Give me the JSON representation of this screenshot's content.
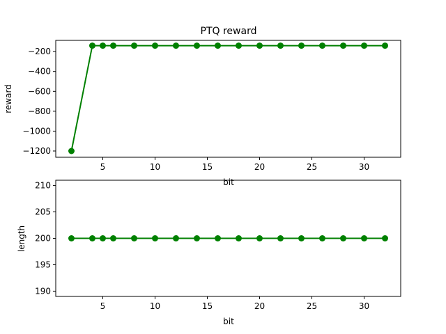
{
  "chart_data": [
    {
      "type": "line",
      "title": "PTQ reward",
      "xlabel": "bit",
      "ylabel": "reward",
      "x": [
        2,
        4,
        5,
        6,
        8,
        10,
        12,
        14,
        16,
        18,
        20,
        22,
        24,
        26,
        28,
        30,
        32
      ],
      "series": [
        {
          "values": [
            -1200,
            -140,
            -140,
            -140,
            -140,
            -140,
            -140,
            -140,
            -140,
            -140,
            -140,
            -140,
            -140,
            -140,
            -140,
            -140,
            -140
          ],
          "color": "#008000",
          "marker": "circle"
        }
      ],
      "xlim": [
        0.5,
        33.5
      ],
      "ylim": [
        -1263,
        -87
      ],
      "xticks": [
        5,
        10,
        15,
        20,
        25,
        30
      ],
      "yticks": [
        -1200,
        -1000,
        -800,
        -600,
        -400,
        -200
      ],
      "xtick_labels": [
        "5",
        "10",
        "15",
        "20",
        "25",
        "30"
      ],
      "ytick_labels": [
        "−1200",
        "−1000",
        "−800",
        "−600",
        "−400",
        "−200"
      ],
      "grid": false
    },
    {
      "type": "line",
      "title": "",
      "xlabel": "bit",
      "ylabel": "length",
      "x": [
        2,
        4,
        5,
        6,
        8,
        10,
        12,
        14,
        16,
        18,
        20,
        22,
        24,
        26,
        28,
        30,
        32
      ],
      "series": [
        {
          "values": [
            200,
            200,
            200,
            200,
            200,
            200,
            200,
            200,
            200,
            200,
            200,
            200,
            200,
            200,
            200,
            200,
            200
          ],
          "color": "#008000",
          "marker": "circle"
        }
      ],
      "xlim": [
        0.5,
        33.5
      ],
      "ylim": [
        189,
        211
      ],
      "xticks": [
        5,
        10,
        15,
        20,
        25,
        30
      ],
      "yticks": [
        190,
        195,
        200,
        205,
        210
      ],
      "xtick_labels": [
        "5",
        "10",
        "15",
        "20",
        "25",
        "30"
      ],
      "ytick_labels": [
        "190",
        "195",
        "200",
        "205",
        "210"
      ],
      "grid": false
    }
  ]
}
